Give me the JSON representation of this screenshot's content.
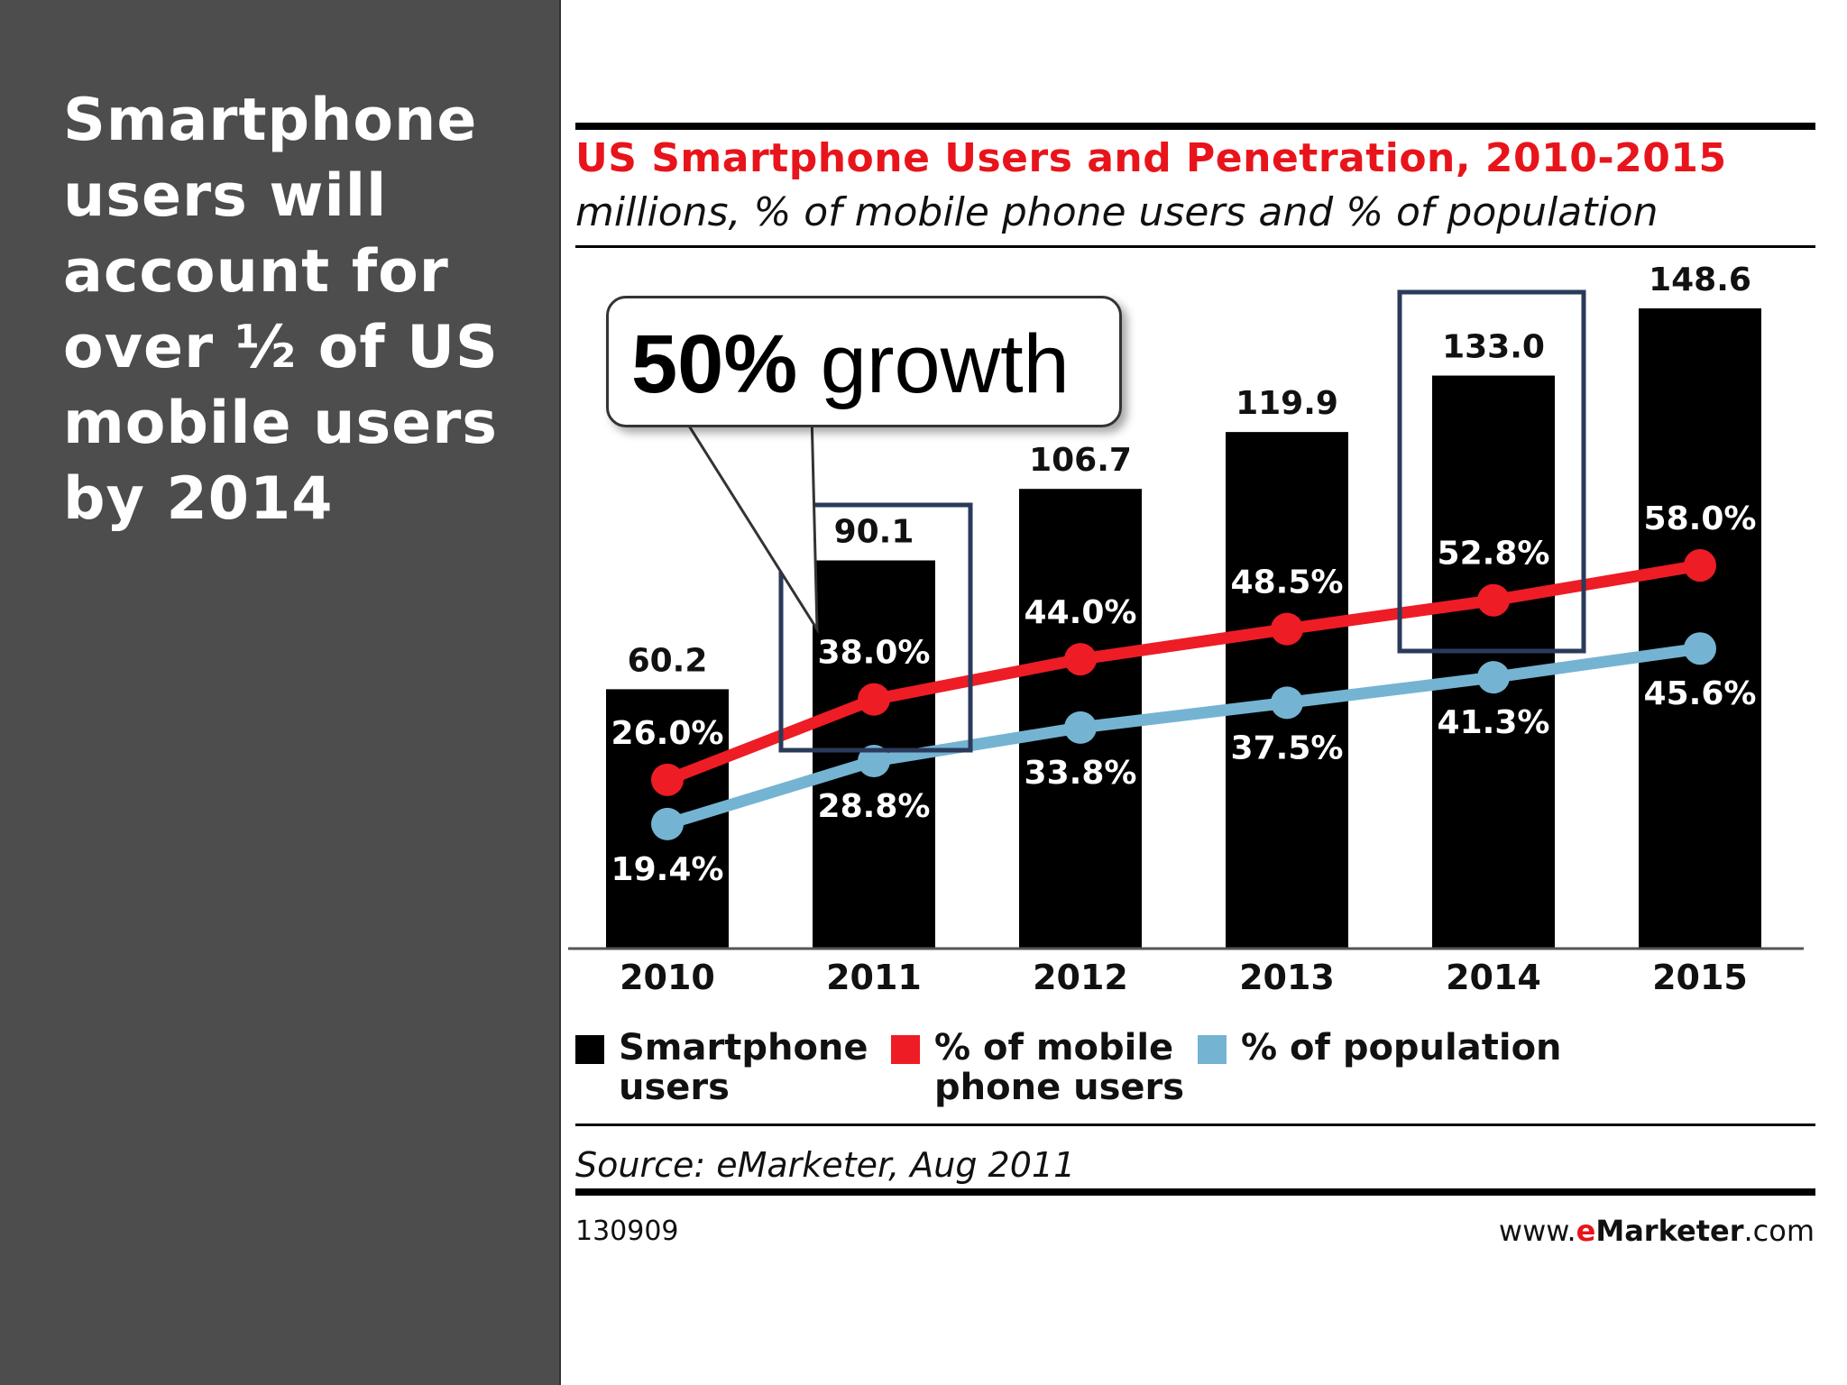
{
  "headline": "Smartphone\nusers will\naccount for\nover ½ of US\nmobile users\nby 2014",
  "callout": {
    "bold": "50%",
    "rest": " growth"
  },
  "source": "Source: eMarketer, Aug 2011",
  "chart_id": "130909",
  "site": {
    "pre": "www.",
    "e": "e",
    "brand": "Marketer",
    "post": ".com"
  },
  "colors": {
    "bars": "#000000",
    "mobile_pct": "#ee1c25",
    "population_pct": "#74b4d2",
    "title": "#e8141b",
    "highlight_box": "#2a3a5a"
  },
  "chart_data": {
    "type": "bar",
    "title": "US Smartphone Users and Penetration, 2010-2015",
    "subtitle": "millions, % of mobile phone users and % of population",
    "categories": [
      "2010",
      "2011",
      "2012",
      "2013",
      "2014",
      "2015"
    ],
    "series": [
      {
        "name": "Smartphone users",
        "type": "bar",
        "values": [
          60.2,
          90.1,
          106.7,
          119.9,
          133.0,
          148.6
        ],
        "labels": [
          "60.2",
          "90.1",
          "106.7",
          "119.9",
          "133.0",
          "148.6"
        ]
      },
      {
        "name": "% of mobile phone users",
        "type": "line",
        "values": [
          26.0,
          38.0,
          44.0,
          48.5,
          52.8,
          58.0
        ],
        "labels": [
          "26.0%",
          "38.0%",
          "44.0%",
          "48.5%",
          "52.8%",
          "58.0%"
        ]
      },
      {
        "name": "% of population",
        "type": "line",
        "values": [
          19.4,
          28.8,
          33.8,
          37.5,
          41.3,
          45.6
        ],
        "labels": [
          "19.4%",
          "28.8%",
          "33.8%",
          "37.5%",
          "41.3%",
          "45.6%"
        ]
      }
    ],
    "legend": [
      {
        "label": "Smartphone\nusers",
        "color": "#000000"
      },
      {
        "label": "% of mobile\nphone users",
        "color": "#ee1c25"
      },
      {
        "label": "% of population",
        "color": "#74b4d2"
      }
    ],
    "highlighted_categories": [
      "2011",
      "2014"
    ],
    "legend_position": "bottom",
    "grid": false
  }
}
